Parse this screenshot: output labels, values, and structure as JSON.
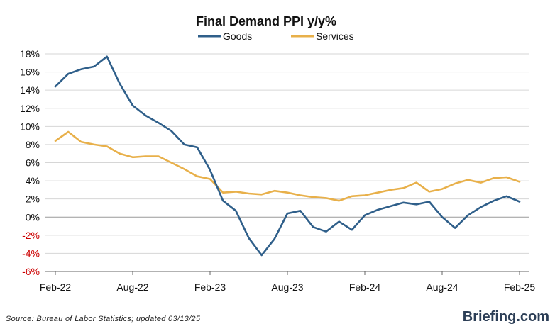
{
  "chart_data": {
    "type": "line",
    "title": "Final Demand PPI y/y%",
    "ylim": [
      -6,
      18
    ],
    "yticks": [
      18,
      16,
      14,
      12,
      10,
      8,
      6,
      4,
      2,
      0,
      -2,
      -4,
      -6
    ],
    "ytick_labels": [
      "18%",
      "16%",
      "14%",
      "12%",
      "10%",
      "8%",
      "6%",
      "4%",
      "2%",
      "0%",
      "-2%",
      "-4%",
      "-6%"
    ],
    "negative_tick_color": "#cc0000",
    "grid": true,
    "legend": "top-center",
    "x": [
      "Feb-22",
      "Mar-22",
      "Apr-22",
      "May-22",
      "Jun-22",
      "Jul-22",
      "Aug-22",
      "Sep-22",
      "Oct-22",
      "Nov-22",
      "Dec-22",
      "Jan-23",
      "Feb-23",
      "Mar-23",
      "Apr-23",
      "May-23",
      "Jun-23",
      "Jul-23",
      "Aug-23",
      "Sep-23",
      "Oct-23",
      "Nov-23",
      "Dec-23",
      "Jan-24",
      "Feb-24",
      "Mar-24",
      "Apr-24",
      "May-24",
      "Jun-24",
      "Jul-24",
      "Aug-24",
      "Sep-24",
      "Oct-24",
      "Nov-24",
      "Dec-24",
      "Jan-25",
      "Feb-25"
    ],
    "xtick_labels": [
      "Feb-22",
      "Aug-22",
      "Feb-23",
      "Aug-23",
      "Feb-24",
      "Aug-24",
      "Feb-25"
    ],
    "series": [
      {
        "name": "Goods",
        "color": "#2f5f8a",
        "values": [
          14.4,
          15.8,
          16.3,
          16.6,
          17.7,
          14.7,
          12.3,
          11.2,
          10.4,
          9.5,
          8.0,
          7.7,
          5.2,
          1.8,
          0.7,
          -2.3,
          -4.2,
          -2.4,
          0.4,
          0.7,
          -1.1,
          -1.6,
          -0.5,
          -1.4,
          0.2,
          0.8,
          1.2,
          1.6,
          1.4,
          1.7,
          0.0,
          -1.2,
          0.2,
          1.1,
          1.8,
          2.3,
          1.7
        ]
      },
      {
        "name": "Services",
        "color": "#e8b04a",
        "values": [
          8.4,
          9.4,
          8.3,
          8.0,
          7.8,
          7.0,
          6.6,
          6.7,
          6.7,
          6.0,
          5.3,
          4.5,
          4.2,
          2.7,
          2.8,
          2.6,
          2.5,
          2.9,
          2.7,
          2.4,
          2.2,
          2.1,
          1.8,
          2.3,
          2.4,
          2.7,
          3.0,
          3.2,
          3.8,
          2.8,
          3.1,
          3.7,
          4.1,
          3.8,
          4.3,
          4.4,
          3.9
        ]
      }
    ]
  },
  "footer": {
    "source": "Source: Bureau of Labor Statistics; updated 03/13/25",
    "brand_name": "Briefing",
    "brand_suffix": ".com"
  }
}
